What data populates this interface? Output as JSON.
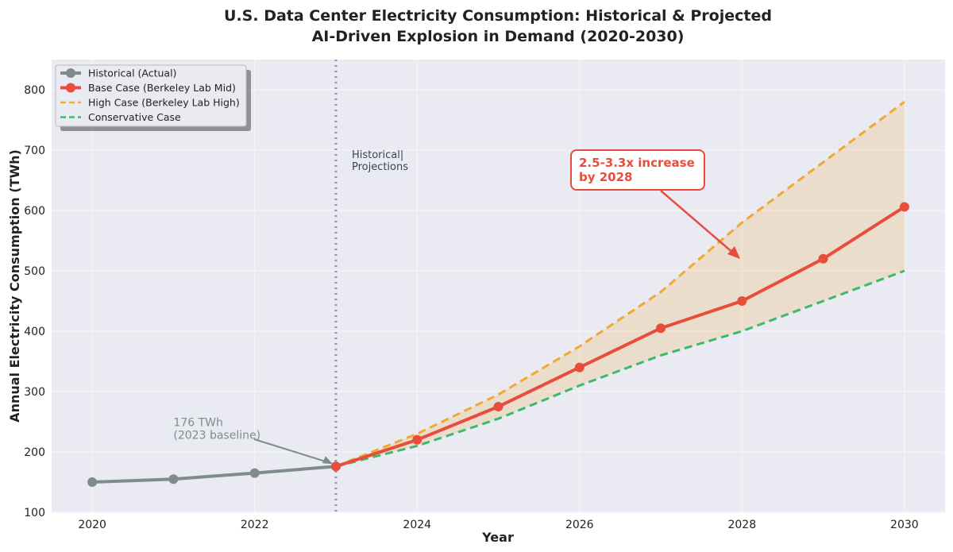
{
  "chart_data": {
    "type": "line",
    "title_line1": "U.S. Data Center Electricity Consumption: Historical & Projected",
    "title_line2": "AI-Driven Explosion in Demand (2020-2030)",
    "xlabel": "Year",
    "ylabel": "Annual Electricity Consumption (TWh)",
    "xlim": [
      2019.5,
      2030.5
    ],
    "ylim": [
      100,
      850
    ],
    "xticks": [
      2020,
      2022,
      2024,
      2026,
      2028,
      2030
    ],
    "yticks": [
      100,
      200,
      300,
      400,
      500,
      600,
      700,
      800
    ],
    "grid": true,
    "legend_position": "top-left",
    "series": [
      {
        "name": "Historical (Actual)",
        "color": "#7f8c8d",
        "style": "solid-marker",
        "x": [
          2020,
          2021,
          2022,
          2023
        ],
        "values": [
          150,
          155,
          165,
          176
        ]
      },
      {
        "name": "Base Case (Berkeley Lab Mid)",
        "color": "#e74c3c",
        "style": "solid-marker",
        "x": [
          2023,
          2024,
          2025,
          2026,
          2027,
          2028,
          2029,
          2030
        ],
        "values": [
          176,
          220,
          275,
          340,
          405,
          450,
          520,
          606
        ]
      },
      {
        "name": "High Case (Berkeley Lab High)",
        "color": "#f0a830",
        "style": "dashed",
        "x": [
          2023,
          2024,
          2025,
          2026,
          2027,
          2028,
          2029,
          2030
        ],
        "values": [
          176,
          230,
          295,
          375,
          465,
          580,
          680,
          780
        ]
      },
      {
        "name": "Conservative Case",
        "color": "#3cb96a",
        "style": "dashed",
        "x": [
          2023,
          2024,
          2025,
          2026,
          2027,
          2028,
          2029,
          2030
        ],
        "values": [
          176,
          210,
          255,
          310,
          360,
          400,
          450,
          500
        ]
      }
    ],
    "divider": {
      "x": 2023,
      "label_line1": "Historical|",
      "label_line2": "Projections"
    },
    "annotations": [
      {
        "text_line1": "176 TWh",
        "text_line2": "(2023 baseline)",
        "point": [
          2023,
          176
        ],
        "text_at": [
          2021,
          235
        ]
      },
      {
        "text_line1": "2.5-3.3x increase",
        "text_line2": "by 2028",
        "point": [
          2028,
          515
        ],
        "text_at": [
          2026.05,
          680
        ]
      }
    ],
    "band_color": "#f0a830"
  }
}
